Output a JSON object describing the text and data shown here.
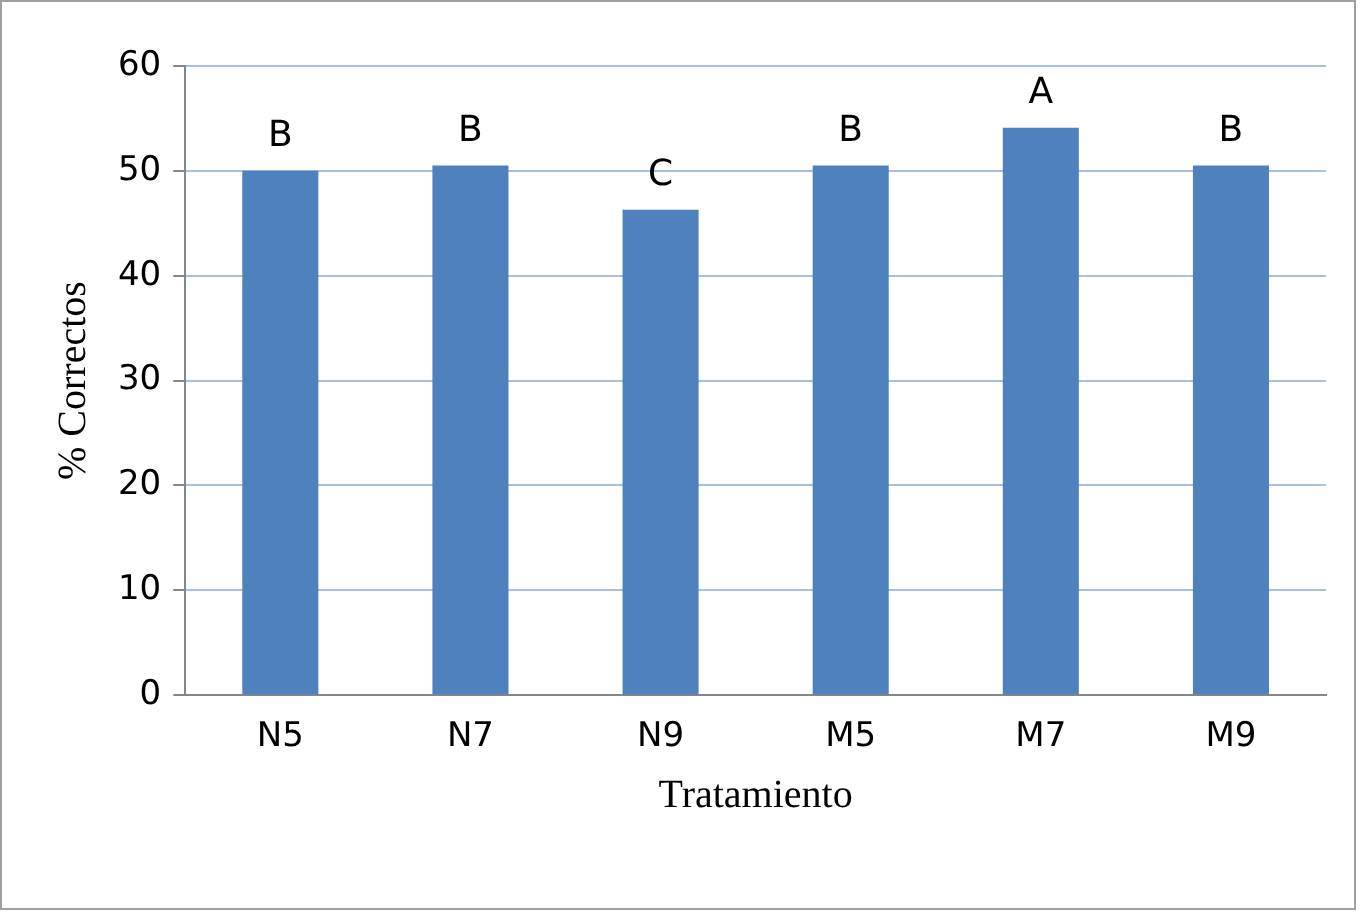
{
  "chart_data": {
    "type": "bar",
    "xlabel": "Tratamiento",
    "ylabel": "% Correctos",
    "categories": [
      "N5",
      "N7",
      "N9",
      "M5",
      "M7",
      "M9"
    ],
    "values": [
      50,
      50.5,
      46.3,
      50.5,
      54.1,
      50.5
    ],
    "color": "#4f81bd",
    "ylim": [
      0,
      60
    ],
    "yticks": [
      0,
      10,
      20,
      30,
      40,
      50,
      60
    ],
    "grid": "y",
    "legend": false,
    "annotations": [
      {
        "text": "B",
        "x": "N5",
        "y": 50
      },
      {
        "text": "B",
        "x": "N7",
        "y": 50.5
      },
      {
        "text": "C",
        "x": "N9",
        "y": 46.3
      },
      {
        "text": "B",
        "x": "M5",
        "y": 50.5
      },
      {
        "text": "A",
        "x": "M7",
        "y": 54.1
      },
      {
        "text": "B",
        "x": "M9",
        "y": 50.5
      }
    ]
  }
}
